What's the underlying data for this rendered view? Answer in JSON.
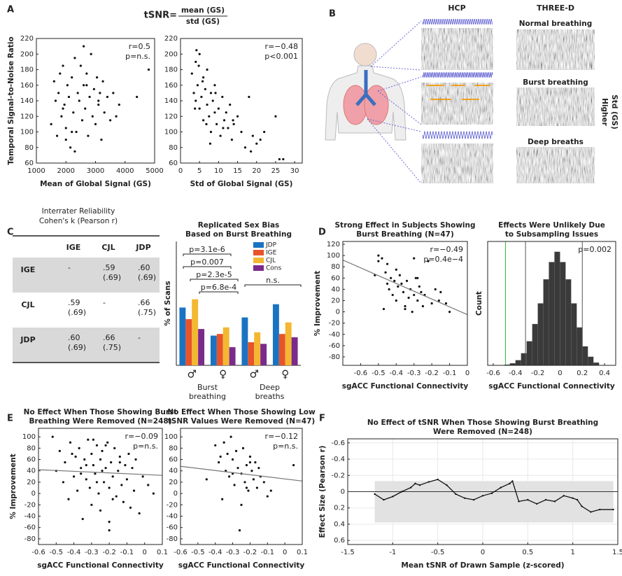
{
  "panels": [
    "A",
    "B",
    "C",
    "D",
    "E",
    "F"
  ],
  "formula": {
    "lhs": "tSNR=",
    "numerator": "mean (GS)",
    "denominator": "std (GS)"
  },
  "panel_b": {
    "columns": [
      "HCP",
      "THREE-D"
    ],
    "conditions": [
      "Normal breathing",
      "Burst breathing",
      "Deep breaths"
    ],
    "side_label": [
      "Higher",
      "Std (GS)"
    ]
  },
  "table_c": {
    "title": [
      "Interrater Reliability",
      "Cohen's k (Pearson r)"
    ],
    "header": [
      "IGE",
      "CJL",
      "JDP"
    ],
    "rows": [
      {
        "label": "IGE",
        "cells": [
          [
            "-"
          ],
          [
            ".59",
            "(.69)"
          ],
          [
            ".60",
            "(.69)"
          ]
        ]
      },
      {
        "label": "CJL",
        "cells": [
          [
            ".59",
            "(.69)"
          ],
          [
            "-"
          ],
          [
            ".66",
            "(.75)"
          ]
        ]
      },
      {
        "label": "JDP",
        "cells": [
          [
            ".60",
            "(.69)"
          ],
          [
            ".66",
            "(.75)"
          ],
          [
            "-"
          ]
        ]
      }
    ]
  },
  "chart_data": [
    {
      "type": "scatter",
      "ylabel": "Temporal Signal-to-Noise Ratio",
      "xlabel": "Mean of Global Signal (GS)",
      "annotations": [
        "r=0.5",
        "p=n.s."
      ],
      "color": "#111",
      "x": [
        1500,
        1600,
        1650,
        1700,
        1750,
        1800,
        1850,
        1900,
        1950,
        2000,
        2050,
        2100,
        2150,
        2200,
        2250,
        2300,
        2350,
        2400,
        2450,
        2500,
        2550,
        2600,
        2650,
        2700,
        2750,
        2800,
        2850,
        2900,
        2950,
        3000,
        3050,
        3100,
        3150,
        3200,
        3250,
        3300,
        3400,
        3500,
        3600,
        3700,
        3800,
        4400,
        4800,
        2300,
        2600,
        1900,
        2000,
        2700,
        3100,
        2200
      ],
      "y": [
        110,
        165,
        140,
        95,
        150,
        175,
        120,
        185,
        135,
        105,
        160,
        145,
        80,
        170,
        125,
        195,
        100,
        150,
        140,
        185,
        115,
        160,
        130,
        175,
        95,
        145,
        200,
        120,
        155,
        110,
        170,
        135,
        150,
        90,
        165,
        125,
        145,
        115,
        150,
        120,
        135,
        145,
        180,
        75,
        210,
        130,
        90,
        160,
        140,
        100
      ],
      "xlim": [
        1000,
        5000
      ],
      "xticks": [
        1000,
        2000,
        3000,
        4000,
        5000
      ],
      "ylim": [
        60,
        220
      ],
      "yticks": [
        60,
        80,
        100,
        120,
        140,
        160,
        180,
        200,
        220
      ]
    },
    {
      "type": "scatter",
      "xlabel": "Std of Global Signal (GS)",
      "annotations": [
        "r=−0.48",
        "p<0.001"
      ],
      "color": "#111",
      "x": [
        3,
        3.5,
        4,
        4,
        4.5,
        5,
        5,
        5.5,
        6,
        6,
        6.5,
        7,
        7,
        7.5,
        8,
        8,
        8.5,
        9,
        9,
        9.5,
        10,
        10.5,
        11,
        11.5,
        12,
        12.5,
        13,
        13.5,
        14,
        15,
        16,
        17,
        18,
        19,
        20,
        21,
        22,
        25,
        27,
        4.2,
        5.8,
        6.8,
        7.8,
        3.8,
        4.8,
        9.2,
        11.2,
        13.8,
        18.5,
        26
      ],
      "y": [
        175,
        150,
        190,
        140,
        160,
        130,
        200,
        145,
        170,
        115,
        155,
        135,
        180,
        120,
        150,
        100,
        140,
        125,
        160,
        110,
        130,
        95,
        145,
        115,
        125,
        105,
        135,
        90,
        110,
        120,
        100,
        80,
        145,
        95,
        85,
        90,
        100,
        120,
        65,
        205,
        165,
        110,
        85,
        130,
        185,
        150,
        105,
        115,
        75,
        65
      ],
      "xlim": [
        0,
        32
      ],
      "xticks": [
        0,
        5,
        10,
        15,
        20,
        25,
        30
      ],
      "ylim": [
        60,
        220
      ],
      "yticks": [
        60,
        80,
        100,
        120,
        140,
        160,
        180,
        200,
        220
      ]
    },
    {
      "type": "bar",
      "title": [
        "Replicated Sex Bias",
        "Based on Burst Breathing"
      ],
      "ylabel": "% of Scans",
      "categories": [
        "♂",
        "♀",
        "♂",
        "♀"
      ],
      "groups": [
        [
          "Burst",
          "breathing"
        ],
        [
          "Deep",
          "breaths"
        ]
      ],
      "annotations": [
        "p=3.1e-6",
        "p=0.007",
        "p=2.3e-5",
        "p=6.8e-4",
        "n.s."
      ],
      "series": [
        {
          "name": "JDP",
          "color": "#1a73c2",
          "values": [
            35,
            18,
            29,
            37
          ]
        },
        {
          "name": "IGE",
          "color": "#e8532a",
          "values": [
            28,
            19,
            14,
            19
          ]
        },
        {
          "name": "CJL",
          "color": "#f4b731",
          "values": [
            40,
            23,
            20,
            26
          ]
        },
        {
          "name": "Cons",
          "color": "#7a2a8b",
          "values": [
            22,
            11,
            13,
            17
          ]
        }
      ],
      "ylim": [
        0,
        75
      ]
    },
    {
      "type": "scatter",
      "title": [
        "Strong Effect in Subjects Showing",
        "Burst Breathing (N=47)"
      ],
      "ylabel": "% Improvement",
      "xlabel": "sgACC Functional Connectivity",
      "annotations": [
        "r=−0.49",
        "p=0.4e−4"
      ],
      "color": "#111",
      "x": [
        -0.52,
        -0.5,
        -0.5,
        -0.48,
        -0.47,
        -0.46,
        -0.45,
        -0.44,
        -0.43,
        -0.42,
        -0.41,
        -0.4,
        -0.4,
        -0.39,
        -0.38,
        -0.37,
        -0.36,
        -0.35,
        -0.34,
        -0.33,
        -0.32,
        -0.31,
        -0.3,
        -0.3,
        -0.29,
        -0.28,
        -0.27,
        -0.26,
        -0.25,
        -0.24,
        -0.22,
        -0.2,
        -0.18,
        -0.16,
        -0.15,
        -0.12,
        -0.1,
        -0.35,
        -0.45,
        -0.28
      ],
      "y": [
        65,
        100,
        90,
        95,
        5,
        70,
        85,
        40,
        60,
        30,
        55,
        75,
        20,
        45,
        65,
        50,
        35,
        10,
        55,
        25,
        40,
        0,
        95,
        30,
        60,
        20,
        45,
        35,
        10,
        30,
        90,
        15,
        40,
        20,
        35,
        15,
        0,
        5,
        50,
        60
      ],
      "fit": {
        "x": [
          -0.7,
          0
        ],
        "y": [
          92,
          -5
        ],
        "color": "#777"
      },
      "xlim": [
        -0.7,
        0
      ],
      "xticks": [
        -0.6,
        -0.5,
        -0.4,
        -0.3,
        -0.2,
        -0.1,
        0
      ],
      "ylim": [
        -95,
        125
      ],
      "yticks": [
        -80,
        -60,
        -40,
        -20,
        0,
        20,
        40,
        60,
        80,
        100,
        120
      ]
    },
    {
      "type": "histogram",
      "title": [
        "Effects Were Unlikely Due",
        "to Subsampling Issues"
      ],
      "ylabel": "Count",
      "xlabel": "sgACC Functional Connectivity",
      "annotations": [
        "p=0.002"
      ],
      "color": "#3a3a3a",
      "bins": [
        -0.5,
        -0.45,
        -0.4,
        -0.35,
        -0.3,
        -0.25,
        -0.2,
        -0.15,
        -0.1,
        -0.05,
        0,
        0.05,
        0.1,
        0.15,
        0.2,
        0.25,
        0.3,
        0.35
      ],
      "counts": [
        2,
        6,
        15,
        35,
        70,
        120,
        180,
        250,
        300,
        330,
        300,
        250,
        180,
        110,
        55,
        25,
        8
      ],
      "vlines": [
        {
          "value": -0.49,
          "color": "#33bb33"
        },
        {
          "value": -0.31,
          "color": "#555"
        },
        {
          "value": 0.2,
          "color": "#555"
        }
      ],
      "xlim": [
        -0.65,
        0.5
      ],
      "xticks": [
        -0.6,
        -0.4,
        -0.2,
        0,
        0.2,
        0.4
      ],
      "ylim": [
        0,
        360
      ]
    },
    {
      "type": "scatter",
      "title": [
        "No Effect When Those Showing Burst",
        "Breathing Were Removed (N=248)"
      ],
      "ylabel": "% Improvement",
      "xlabel": "sgACC Functional Connectivity",
      "annotations": [
        "r=−0.09",
        "p=n.s."
      ],
      "color": "#111",
      "x": [
        -0.52,
        -0.5,
        -0.48,
        -0.46,
        -0.45,
        -0.43,
        -0.42,
        -0.4,
        -0.39,
        -0.38,
        -0.37,
        -0.36,
        -0.35,
        -0.34,
        -0.33,
        -0.32,
        -0.31,
        -0.3,
        -0.3,
        -0.29,
        -0.28,
        -0.27,
        -0.26,
        -0.25,
        -0.25,
        -0.24,
        -0.23,
        -0.22,
        -0.21,
        -0.2,
        -0.2,
        -0.19,
        -0.18,
        -0.17,
        -0.16,
        -0.15,
        -0.14,
        -0.13,
        -0.12,
        -0.11,
        -0.1,
        -0.09,
        -0.08,
        -0.07,
        -0.06,
        -0.05,
        -0.03,
        -0.01,
        0.02,
        0.05,
        -0.33,
        -0.27,
        -0.22,
        -0.18,
        -0.36,
        -0.14,
        -0.41,
        -0.24,
        -0.29,
        -0.2
      ],
      "y": [
        100,
        40,
        75,
        20,
        55,
        -10,
        90,
        30,
        65,
        5,
        80,
        45,
        -45,
        60,
        25,
        95,
        10,
        70,
        -20,
        50,
        35,
        85,
        0,
        60,
        -30,
        75,
        20,
        45,
        90,
        10,
        -65,
        55,
        30,
        80,
        -5,
        40,
        65,
        15,
        -15,
        50,
        25,
        70,
        -25,
        45,
        5,
        60,
        -35,
        30,
        15,
        0,
        50,
        20,
        85,
        -10,
        35,
        55,
        70,
        40,
        95,
        -50
      ],
      "fit": {
        "x": [
          -0.6,
          0.1
        ],
        "y": [
          42,
          32
        ],
        "color": "#777"
      },
      "xlim": [
        -0.6,
        0.1
      ],
      "xticks": [
        -0.6,
        -0.5,
        -0.4,
        -0.3,
        -0.2,
        -0.1,
        0,
        0.1
      ],
      "ylim": [
        -90,
        115
      ],
      "yticks": [
        -80,
        -60,
        -40,
        -20,
        0,
        20,
        40,
        60,
        80,
        100
      ]
    },
    {
      "type": "scatter",
      "title": [
        "No Effect When Those Showing Low",
        "tSNR Values Were Removed (N=47)"
      ],
      "xlabel": "sgACC Functional Connectivity",
      "annotations": [
        "r=−0.12",
        "p=n.s."
      ],
      "color": "#111",
      "x": [
        -0.45,
        -0.4,
        -0.38,
        -0.36,
        -0.35,
        -0.34,
        -0.33,
        -0.32,
        -0.31,
        -0.3,
        -0.29,
        -0.28,
        -0.27,
        -0.26,
        -0.25,
        -0.24,
        -0.23,
        -0.22,
        -0.21,
        -0.2,
        -0.19,
        -0.18,
        -0.17,
        -0.16,
        -0.15,
        -0.14,
        -0.12,
        -0.1,
        -0.08,
        0.05,
        -0.37,
        -0.3,
        -0.25,
        -0.2,
        -0.22
      ],
      "y": [
        25,
        85,
        55,
        -10,
        90,
        40,
        70,
        30,
        100,
        60,
        15,
        75,
        45,
        -65,
        35,
        80,
        20,
        50,
        5,
        65,
        40,
        25,
        55,
        10,
        45,
        30,
        20,
        -5,
        5,
        50,
        65,
        35,
        -20,
        55,
        10
      ],
      "fit": {
        "x": [
          -0.6,
          0.1
        ],
        "y": [
          48,
          22
        ],
        "color": "#777"
      },
      "xlim": [
        -0.6,
        0.1
      ],
      "xticks": [
        -0.6,
        -0.5,
        -0.4,
        -0.3,
        -0.2,
        -0.1,
        0,
        0.1
      ],
      "ylim": [
        -90,
        115
      ],
      "yticks": [
        -80,
        -60,
        -40,
        -20,
        0,
        20,
        40,
        60,
        80,
        100
      ]
    },
    {
      "type": "line",
      "title": [
        "No Effect of tSNR When Those Showing Burst Breathing",
        "Were Removed (N=248)"
      ],
      "ylabel": "Effect Size (Pearson r)",
      "xlabel": "Mean tSNR of Drawn Sample (z-scored)",
      "grid": true,
      "x": [
        -1.2,
        -1.1,
        -1.0,
        -0.9,
        -0.8,
        -0.75,
        -0.7,
        -0.6,
        -0.5,
        -0.4,
        -0.3,
        -0.2,
        -0.1,
        0,
        0.1,
        0.2,
        0.3,
        0.33,
        0.4,
        0.5,
        0.6,
        0.7,
        0.8,
        0.9,
        1.0,
        1.05,
        1.1,
        1.2,
        1.3,
        1.45
      ],
      "series": [
        {
          "color": "#111",
          "values": [
            0.03,
            0.1,
            0.06,
            0.0,
            -0.05,
            -0.1,
            -0.08,
            -0.12,
            -0.15,
            -0.08,
            0.03,
            0.08,
            0.1,
            0.05,
            0.02,
            -0.05,
            -0.1,
            -0.13,
            0.12,
            0.1,
            0.15,
            0.1,
            0.12,
            0.05,
            0.08,
            0.1,
            0.18,
            0.25,
            0.22,
            0.22
          ]
        }
      ],
      "band": {
        "x": [
          -1.2,
          1.45
        ],
        "low": [
          -0.13,
          -0.13
        ],
        "high": [
          0.38,
          0.38
        ],
        "color": "#e2e2e2"
      },
      "hlines": [
        0
      ],
      "xlim": [
        -1.5,
        1.5
      ],
      "xticks": [
        -1.5,
        -1,
        -0.5,
        0,
        0.5,
        1,
        1.5
      ],
      "ylim": [
        0.65,
        -0.65
      ],
      "yticks": [
        -0.6,
        -0.4,
        -0.2,
        0,
        0.2,
        0.4,
        0.6
      ]
    }
  ]
}
